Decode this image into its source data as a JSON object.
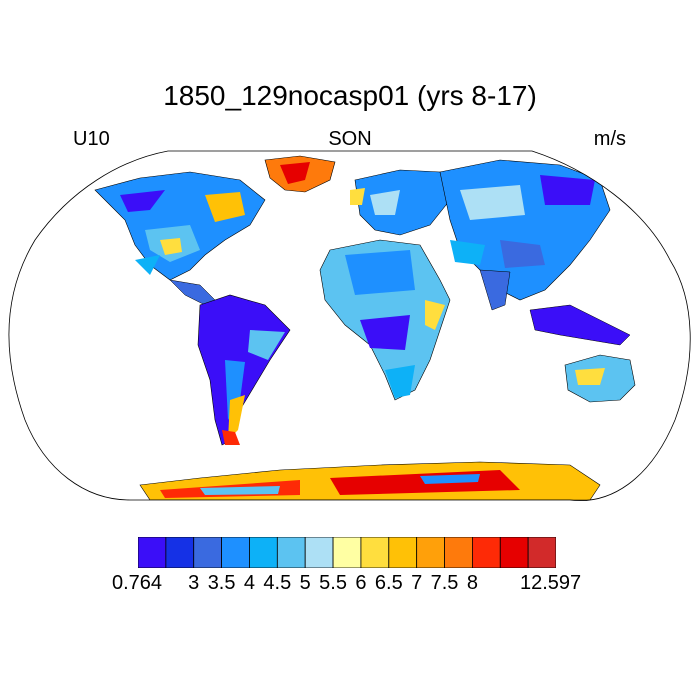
{
  "figure": {
    "title": "1850_129nocasp01 (yrs 8-17)",
    "left_label": "U10",
    "center_label": "SON",
    "right_label": "m/s"
  },
  "colorbar": {
    "colors": [
      "#3b0ef8",
      "#1531e6",
      "#3a6ae0",
      "#1e90ff",
      "#0db1f7",
      "#5cc3f1",
      "#ade0f5",
      "#ffffa3",
      "#ffde3e",
      "#ffc106",
      "#ffa00a",
      "#fe7a0c",
      "#fe2a06",
      "#e60000",
      "#d22a2a"
    ],
    "labels": [
      "0.764",
      "3",
      "3.5",
      "4",
      "4.5",
      "5",
      "5.5",
      "6",
      "6.5",
      "7",
      "7.5",
      "8",
      "12.597"
    ]
  },
  "map": {
    "projection": "Robinson",
    "variable": "U10",
    "units": "m/s",
    "season": "SON"
  }
}
